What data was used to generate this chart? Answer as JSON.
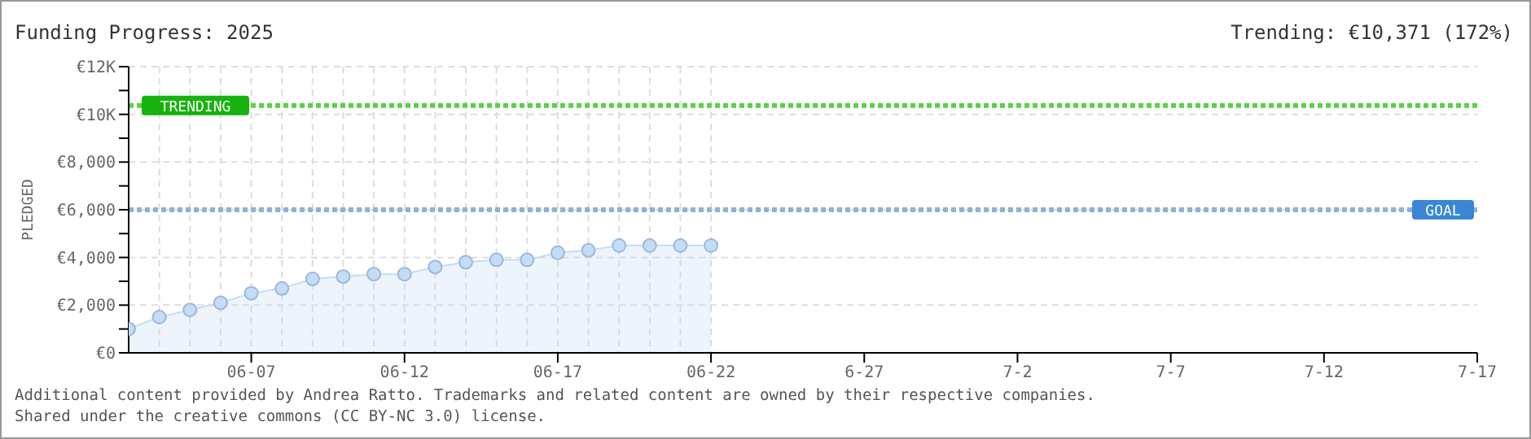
{
  "chart_data": {
    "type": "area",
    "title": "Funding Progress: 2025",
    "ylabel": "PLEDGED",
    "annotations": [
      "Trending: €10,371 (172%)",
      "Additional content provided by Andrea Ratto. Trademarks and related content are owned by their respective companies.",
      "Shared under the creative commons (CC BY-NC 3.0) license."
    ],
    "x": [
      "2025-06-03",
      "2025-06-04",
      "2025-06-05",
      "2025-06-06",
      "2025-06-07",
      "2025-06-08",
      "2025-06-09",
      "2025-06-10",
      "2025-06-11",
      "2025-06-12",
      "2025-06-13",
      "2025-06-14",
      "2025-06-15",
      "2025-06-16",
      "2025-06-17",
      "2025-06-18",
      "2025-06-19",
      "2025-06-20",
      "2025-06-21",
      "2025-06-22"
    ],
    "series": [
      {
        "color": "#c5dcf5",
        "values": [
          1000,
          1500,
          1800,
          2100,
          2500,
          2700,
          3100,
          3200,
          3300,
          3300,
          3600,
          3800,
          3900,
          3900,
          4200,
          4300,
          4500,
          4500,
          4500,
          4500
        ]
      }
    ],
    "marker": "circle",
    "grid": true,
    "ylim": [
      0,
      12000
    ],
    "yticks": [
      {
        "value": 0,
        "label": "€0"
      },
      {
        "value": 1000,
        "label": null
      },
      {
        "value": 2000,
        "label": "€2,000"
      },
      {
        "value": 3000,
        "label": null
      },
      {
        "value": 4000,
        "label": "€4,000"
      },
      {
        "value": 5000,
        "label": null
      },
      {
        "value": 6000,
        "label": "€6,000"
      },
      {
        "value": 7000,
        "label": null
      },
      {
        "value": 8000,
        "label": "€8,000"
      },
      {
        "value": 9000,
        "label": null
      },
      {
        "value": 10000,
        "label": "€10K"
      },
      {
        "value": 11000,
        "label": null
      },
      {
        "value": 12000,
        "label": "€12K"
      }
    ],
    "xlim": [
      "2025-06-03",
      "2025-07-17"
    ],
    "xticks": [
      {
        "value": "2025-06-07",
        "label": "06-07"
      },
      {
        "value": "2025-06-12",
        "label": "06-12"
      },
      {
        "value": "2025-06-17",
        "label": "06-17"
      },
      {
        "value": "2025-06-22",
        "label": "06-22"
      },
      {
        "value": "2025-06-27",
        "label": "6-27"
      },
      {
        "value": "2025-07-02",
        "label": "7-2"
      },
      {
        "value": "2025-07-07",
        "label": "7-7"
      },
      {
        "value": "2025-07-12",
        "label": "7-12"
      },
      {
        "value": "2025-07-17",
        "label": "7-17"
      }
    ],
    "ref_lines": [
      {
        "axis": "y",
        "value": 10371,
        "label": "TRENDING",
        "color": "#5ccf4a",
        "line_style": "dotted"
      },
      {
        "axis": "y",
        "value": 6000,
        "label": "GOAL",
        "color": "#8fb0d8",
        "line_style": "dotted"
      }
    ]
  }
}
